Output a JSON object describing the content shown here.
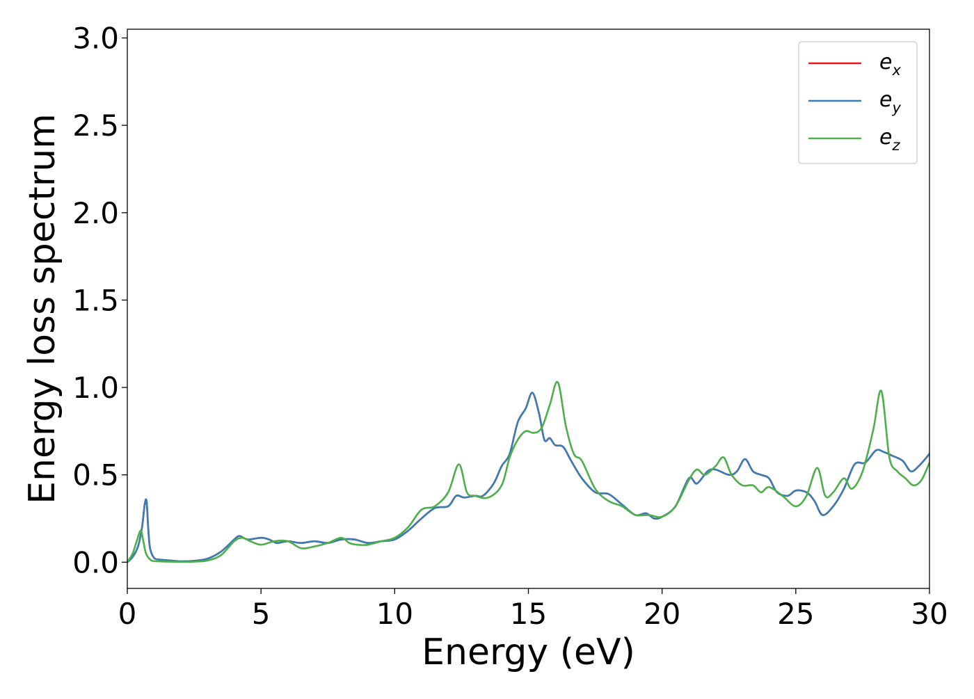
{
  "chart_data": {
    "type": "line",
    "title": "",
    "xlabel": "Energy (eV)",
    "ylabel": "Energy loss spectrum",
    "xlim": [
      0,
      30
    ],
    "ylim": [
      -0.15,
      3.05
    ],
    "grid": false,
    "legend_position": "top-right",
    "x_ticks": [
      {
        "value": 0,
        "label": "0"
      },
      {
        "value": 5,
        "label": "5"
      },
      {
        "value": 10,
        "label": "10"
      },
      {
        "value": 15,
        "label": "15"
      },
      {
        "value": 20,
        "label": "20"
      },
      {
        "value": 25,
        "label": "25"
      },
      {
        "value": 30,
        "label": "30"
      }
    ],
    "y_ticks": [
      {
        "value": 0.0,
        "label": "0.0"
      },
      {
        "value": 0.5,
        "label": "0.5"
      },
      {
        "value": 1.0,
        "label": "1.0"
      },
      {
        "value": 1.5,
        "label": "1.5"
      },
      {
        "value": 2.0,
        "label": "2.0"
      },
      {
        "value": 2.5,
        "label": "2.5"
      },
      {
        "value": 3.0,
        "label": "3.0"
      }
    ],
    "series": [
      {
        "name_base": "e",
        "name_sub": "x",
        "color": "#e41a1c",
        "x": [
          0,
          0.2,
          0.4,
          0.55,
          0.65,
          0.72,
          0.78,
          0.85,
          1.0,
          1.2,
          1.6,
          2.0,
          2.5,
          3.0,
          3.5,
          4.0,
          4.2,
          4.5,
          5.0,
          5.3,
          5.6,
          6.0,
          6.5,
          7.0,
          7.5,
          8.0,
          8.5,
          9.0,
          9.5,
          10.0,
          10.5,
          11.0,
          11.5,
          12.0,
          12.3,
          12.6,
          13.0,
          13.3,
          13.7,
          14.0,
          14.3,
          14.6,
          14.9,
          15.15,
          15.4,
          15.6,
          15.8,
          16.0,
          16.3,
          16.6,
          17.0,
          17.5,
          18.0,
          18.5,
          19.0,
          19.4,
          19.7,
          20.0,
          20.5,
          21.0,
          21.3,
          21.7,
          22.0,
          22.5,
          22.8,
          23.1,
          23.4,
          23.7,
          24.0,
          24.3,
          24.7,
          25.0,
          25.4,
          25.7,
          26.0,
          26.4,
          26.8,
          27.2,
          27.6,
          28.0,
          28.3,
          28.6,
          29.0,
          29.3,
          29.6,
          30.0
        ],
        "y": [
          0.0,
          0.03,
          0.09,
          0.2,
          0.33,
          0.35,
          0.2,
          0.08,
          0.025,
          0.015,
          0.01,
          0.005,
          0.008,
          0.02,
          0.06,
          0.13,
          0.15,
          0.13,
          0.14,
          0.13,
          0.11,
          0.12,
          0.11,
          0.12,
          0.11,
          0.13,
          0.13,
          0.11,
          0.12,
          0.13,
          0.18,
          0.25,
          0.31,
          0.32,
          0.38,
          0.37,
          0.38,
          0.38,
          0.45,
          0.55,
          0.62,
          0.8,
          0.88,
          0.97,
          0.85,
          0.7,
          0.71,
          0.67,
          0.66,
          0.58,
          0.48,
          0.4,
          0.39,
          0.33,
          0.27,
          0.28,
          0.25,
          0.26,
          0.32,
          0.48,
          0.45,
          0.52,
          0.53,
          0.5,
          0.52,
          0.59,
          0.52,
          0.5,
          0.48,
          0.4,
          0.38,
          0.41,
          0.4,
          0.35,
          0.27,
          0.32,
          0.42,
          0.56,
          0.57,
          0.64,
          0.63,
          0.61,
          0.58,
          0.52,
          0.55,
          0.62
        ]
      },
      {
        "name_base": "e",
        "name_sub": "y",
        "color": "#377eb8",
        "x": [
          0,
          0.2,
          0.4,
          0.55,
          0.65,
          0.72,
          0.78,
          0.85,
          1.0,
          1.2,
          1.6,
          2.0,
          2.5,
          3.0,
          3.5,
          4.0,
          4.2,
          4.5,
          5.0,
          5.3,
          5.6,
          6.0,
          6.5,
          7.0,
          7.5,
          8.0,
          8.5,
          9.0,
          9.5,
          10.0,
          10.5,
          11.0,
          11.5,
          12.0,
          12.3,
          12.6,
          13.0,
          13.3,
          13.7,
          14.0,
          14.3,
          14.6,
          14.9,
          15.15,
          15.4,
          15.6,
          15.8,
          16.0,
          16.3,
          16.6,
          17.0,
          17.5,
          18.0,
          18.5,
          19.0,
          19.4,
          19.7,
          20.0,
          20.5,
          21.0,
          21.3,
          21.7,
          22.0,
          22.5,
          22.8,
          23.1,
          23.4,
          23.7,
          24.0,
          24.3,
          24.7,
          25.0,
          25.4,
          25.7,
          26.0,
          26.4,
          26.8,
          27.2,
          27.6,
          28.0,
          28.3,
          28.6,
          29.0,
          29.3,
          29.6,
          30.0
        ],
        "y": [
          0.0,
          0.03,
          0.09,
          0.2,
          0.33,
          0.35,
          0.2,
          0.08,
          0.025,
          0.015,
          0.01,
          0.005,
          0.008,
          0.02,
          0.06,
          0.13,
          0.15,
          0.13,
          0.14,
          0.13,
          0.11,
          0.12,
          0.11,
          0.12,
          0.11,
          0.13,
          0.13,
          0.11,
          0.12,
          0.13,
          0.18,
          0.25,
          0.31,
          0.32,
          0.38,
          0.37,
          0.38,
          0.38,
          0.45,
          0.55,
          0.62,
          0.8,
          0.88,
          0.97,
          0.85,
          0.7,
          0.71,
          0.67,
          0.66,
          0.58,
          0.48,
          0.4,
          0.39,
          0.33,
          0.27,
          0.28,
          0.25,
          0.26,
          0.32,
          0.48,
          0.45,
          0.52,
          0.53,
          0.5,
          0.52,
          0.59,
          0.52,
          0.5,
          0.48,
          0.4,
          0.38,
          0.41,
          0.4,
          0.35,
          0.27,
          0.32,
          0.42,
          0.56,
          0.57,
          0.64,
          0.63,
          0.61,
          0.58,
          0.52,
          0.55,
          0.62
        ]
      },
      {
        "name_base": "e",
        "name_sub": "z",
        "color": "#4daf4a",
        "x": [
          0,
          0.2,
          0.35,
          0.5,
          0.6,
          0.7,
          0.9,
          1.2,
          1.6,
          2.0,
          2.5,
          3.0,
          3.5,
          4.0,
          4.3,
          4.6,
          5.0,
          5.5,
          6.0,
          6.5,
          7.0,
          7.5,
          8.0,
          8.3,
          8.6,
          9.0,
          9.5,
          10.0,
          10.5,
          11.0,
          11.5,
          12.0,
          12.4,
          12.7,
          13.0,
          13.5,
          14.0,
          14.3,
          14.6,
          14.9,
          15.2,
          15.5,
          15.8,
          16.1,
          16.4,
          16.7,
          17.0,
          17.5,
          18.0,
          18.5,
          19.0,
          19.5,
          20.0,
          20.5,
          21.0,
          21.3,
          21.6,
          22.0,
          22.3,
          22.6,
          23.0,
          23.4,
          23.7,
          24.0,
          24.5,
          25.0,
          25.4,
          25.8,
          26.1,
          26.4,
          26.8,
          27.1,
          27.5,
          27.9,
          28.2,
          28.5,
          28.8,
          29.1,
          29.4,
          29.7,
          30.0
        ],
        "y": [
          0.0,
          0.05,
          0.12,
          0.18,
          0.12,
          0.05,
          0.01,
          0.005,
          0.003,
          0.002,
          0.003,
          0.01,
          0.04,
          0.12,
          0.14,
          0.12,
          0.1,
          0.12,
          0.12,
          0.08,
          0.09,
          0.11,
          0.14,
          0.11,
          0.1,
          0.1,
          0.12,
          0.14,
          0.2,
          0.3,
          0.32,
          0.4,
          0.56,
          0.4,
          0.38,
          0.37,
          0.44,
          0.6,
          0.7,
          0.75,
          0.74,
          0.77,
          0.9,
          1.03,
          0.78,
          0.62,
          0.58,
          0.42,
          0.35,
          0.32,
          0.27,
          0.27,
          0.26,
          0.32,
          0.47,
          0.53,
          0.5,
          0.55,
          0.6,
          0.5,
          0.44,
          0.44,
          0.4,
          0.43,
          0.38,
          0.32,
          0.38,
          0.54,
          0.38,
          0.4,
          0.48,
          0.42,
          0.52,
          0.76,
          0.98,
          0.6,
          0.52,
          0.48,
          0.44,
          0.47,
          0.57
        ]
      }
    ]
  }
}
